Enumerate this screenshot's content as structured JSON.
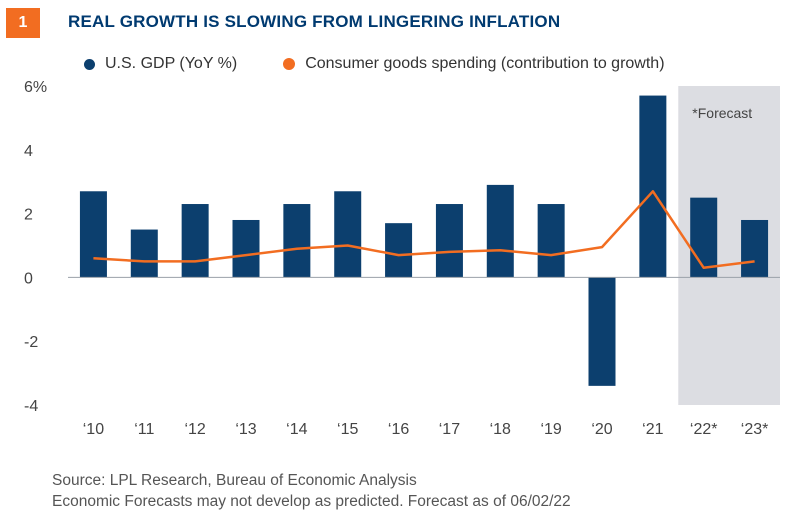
{
  "figure": {
    "number": "1",
    "title": "REAL GROWTH IS SLOWING FROM LINGERING INFLATION"
  },
  "footer": {
    "source": "Source: LPL Research, Bureau of Economic Analysis",
    "note": "Economic Forecasts may not develop as predicted. Forecast as of  06/02/22"
  },
  "colors": {
    "bar": "#0c3f6e",
    "line": "#f26d21",
    "badge": "#f26d21",
    "title": "#003a70",
    "forecast_shade": "#dcdde2"
  },
  "chart_data": {
    "type": "bar",
    "categories": [
      "‘10",
      "‘11",
      "‘12",
      "‘13",
      "‘14",
      "‘15",
      "‘16",
      "‘17",
      "‘18",
      "‘19",
      "‘20",
      "‘21",
      "‘22*",
      "‘23*"
    ],
    "series": [
      {
        "name": "U.S. GDP (YoY %)",
        "type": "bar",
        "values": [
          2.7,
          1.5,
          2.3,
          1.8,
          2.3,
          2.7,
          1.7,
          2.3,
          2.9,
          2.3,
          -3.4,
          5.7,
          2.5,
          1.8
        ]
      },
      {
        "name": "Consumer goods spending (contribution to growth)",
        "type": "line",
        "values": [
          0.6,
          0.5,
          0.5,
          0.7,
          0.9,
          1.0,
          0.7,
          0.8,
          0.85,
          0.7,
          0.95,
          2.7,
          0.3,
          0.5
        ]
      }
    ],
    "ylim": [
      -4,
      6
    ],
    "yticks": [
      {
        "value": 6,
        "label": "6%"
      },
      {
        "value": 4,
        "label": "4"
      },
      {
        "value": 2,
        "label": "2"
      },
      {
        "value": 0,
        "label": "0"
      },
      {
        "value": -2,
        "label": "-2"
      },
      {
        "value": -4,
        "label": "-4"
      }
    ],
    "forecast": {
      "label": "*Forecast",
      "categories": [
        "‘22*",
        "‘23*"
      ]
    },
    "xlabel": "",
    "ylabel": "",
    "grid": false,
    "zero_line": true,
    "legend_position": "top-left"
  }
}
